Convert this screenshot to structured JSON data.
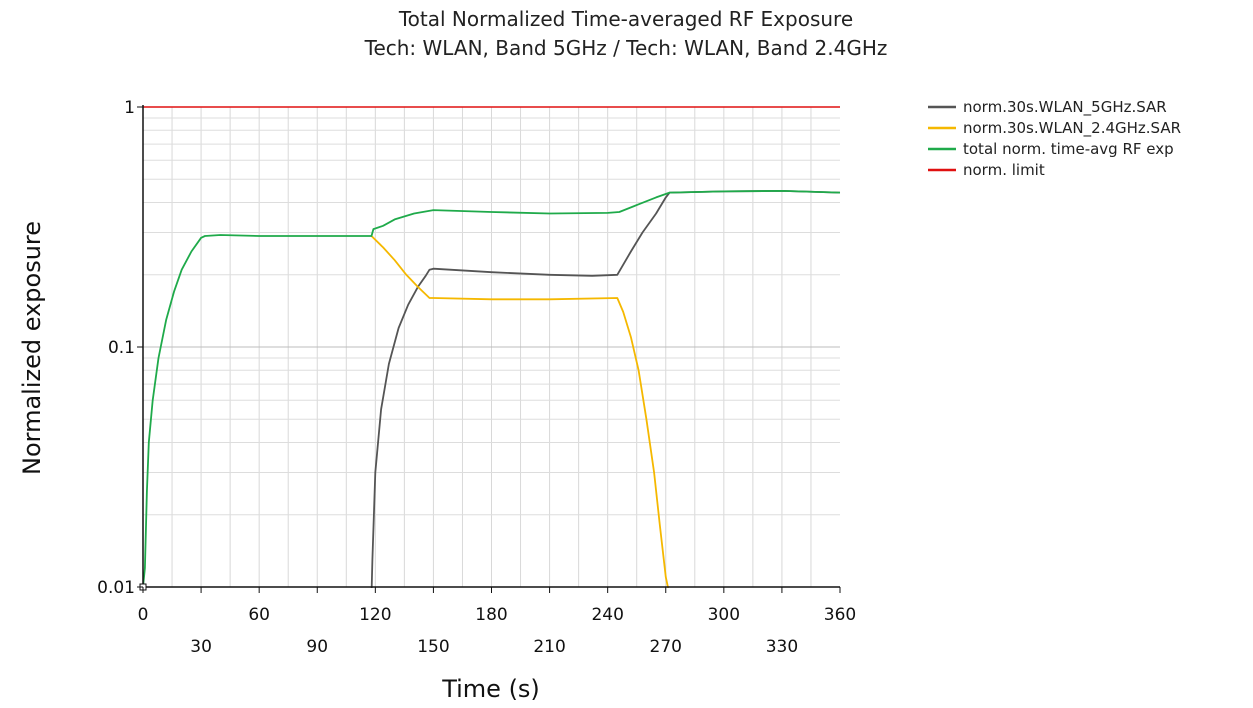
{
  "chart_data": {
    "type": "line",
    "title": "Total Normalized Time-averaged RF Exposure",
    "subtitle": "Tech: WLAN, Band 5GHz / Tech: WLAN, Band 2.4GHz",
    "xlabel": "Time (s)",
    "ylabel": "Normalized exposure",
    "xlim": [
      0,
      360
    ],
    "ylim": [
      0.01,
      1
    ],
    "yscale": "log",
    "grid": true,
    "legend_position": "right",
    "x_ticks": [
      0,
      30,
      60,
      90,
      120,
      150,
      180,
      210,
      240,
      270,
      300,
      330,
      360
    ],
    "x_tick_labels": [
      "0",
      "30",
      "60",
      "90",
      "120",
      "150",
      "180",
      "210",
      "240",
      "270",
      "300",
      "330",
      "360"
    ],
    "y_ticks": [
      0.01,
      0.1,
      1
    ],
    "y_tick_labels": [
      "0.01",
      "0.1",
      "1"
    ],
    "series": [
      {
        "name": "norm.30s.WLAN_5GHz.SAR",
        "color": "#555555",
        "points": [
          [
            118,
            0.005
          ],
          [
            118.5,
            0.013
          ],
          [
            120,
            0.03
          ],
          [
            123,
            0.055
          ],
          [
            127,
            0.085
          ],
          [
            132,
            0.12
          ],
          [
            137,
            0.15
          ],
          [
            142,
            0.178
          ],
          [
            146,
            0.198
          ],
          [
            148,
            0.21
          ],
          [
            150,
            0.212
          ],
          [
            180,
            0.205
          ],
          [
            210,
            0.2
          ],
          [
            232,
            0.198
          ],
          [
            245,
            0.2
          ],
          [
            252,
            0.25
          ],
          [
            258,
            0.3
          ],
          [
            265,
            0.36
          ],
          [
            270,
            0.42
          ],
          [
            272,
            0.44
          ],
          [
            300,
            0.445
          ],
          [
            330,
            0.447
          ],
          [
            360,
            0.44
          ]
        ]
      },
      {
        "name": "norm.30s.WLAN_2.4GHz.SAR",
        "color": "#f5b800",
        "points": [
          [
            118,
            0.29
          ],
          [
            124,
            0.26
          ],
          [
            130,
            0.23
          ],
          [
            136,
            0.2
          ],
          [
            142,
            0.178
          ],
          [
            148,
            0.16
          ],
          [
            150,
            0.16
          ],
          [
            180,
            0.158
          ],
          [
            210,
            0.158
          ],
          [
            245,
            0.16
          ],
          [
            248,
            0.14
          ],
          [
            252,
            0.11
          ],
          [
            256,
            0.08
          ],
          [
            260,
            0.05
          ],
          [
            264,
            0.03
          ],
          [
            267,
            0.018
          ],
          [
            270,
            0.011
          ],
          [
            272,
            0.009
          ]
        ]
      },
      {
        "name": "total norm. time-avg RF exp",
        "color": "#1faa4a",
        "points": [
          [
            0,
            0.01
          ],
          [
            1,
            0.012
          ],
          [
            2,
            0.025
          ],
          [
            3,
            0.04
          ],
          [
            5,
            0.06
          ],
          [
            8,
            0.09
          ],
          [
            12,
            0.13
          ],
          [
            16,
            0.17
          ],
          [
            20,
            0.21
          ],
          [
            25,
            0.25
          ],
          [
            30,
            0.285
          ],
          [
            32,
            0.29
          ],
          [
            40,
            0.293
          ],
          [
            60,
            0.29
          ],
          [
            90,
            0.29
          ],
          [
            118,
            0.29
          ],
          [
            119,
            0.31
          ],
          [
            124,
            0.32
          ],
          [
            130,
            0.34
          ],
          [
            140,
            0.36
          ],
          [
            150,
            0.372
          ],
          [
            180,
            0.365
          ],
          [
            210,
            0.36
          ],
          [
            240,
            0.362
          ],
          [
            246,
            0.365
          ],
          [
            255,
            0.39
          ],
          [
            265,
            0.42
          ],
          [
            272,
            0.44
          ],
          [
            300,
            0.445
          ],
          [
            330,
            0.447
          ],
          [
            360,
            0.44
          ]
        ]
      },
      {
        "name": "norm. limit",
        "color": "#e01010",
        "points": [
          [
            0,
            1
          ],
          [
            360,
            1
          ]
        ]
      }
    ]
  }
}
